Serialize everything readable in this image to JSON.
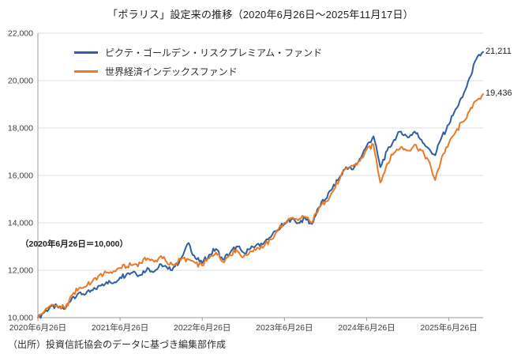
{
  "page": {
    "source_note": "（出所）投資信託協会のデータに基づき編集部作成"
  },
  "chart_data": {
    "type": "line",
    "title": "「ポラリス」設定来の推移（2020年6月26日～2025年11月17日）",
    "annotation": "（2020年6月26日＝10,000）",
    "x_start": "2020年6月26日",
    "x_end": "2025年11月17日",
    "x_unit": "monthly",
    "ylim": [
      10000,
      22000
    ],
    "grid": "horizontal",
    "legend_position": "top-left-inside",
    "y_ticks": [
      {
        "value": 10000,
        "label": "10,000"
      },
      {
        "value": 12000,
        "label": "12,000"
      },
      {
        "value": 14000,
        "label": "14,000"
      },
      {
        "value": 16000,
        "label": "16,000"
      },
      {
        "value": 18000,
        "label": "18,000"
      },
      {
        "value": 20000,
        "label": "20,000"
      },
      {
        "value": 22000,
        "label": "22,000"
      }
    ],
    "x_ticks": [
      {
        "index": 0,
        "label": "2020年6月26日"
      },
      {
        "index": 12,
        "label": "2021年6月26日"
      },
      {
        "index": 24,
        "label": "2022年6月26日"
      },
      {
        "index": 36,
        "label": "2023年6月26日"
      },
      {
        "index": 48,
        "label": "2024年6月26日"
      },
      {
        "index": 60,
        "label": "2025年6月26日"
      }
    ],
    "series": [
      {
        "name": "ピクテ・ゴールデン・リスクプレミアム・ファンド",
        "color": "#2e5fa3",
        "end_label": "21,211",
        "end_value": 21211,
        "values": [
          10000,
          10250,
          10500,
          10420,
          10380,
          10850,
          11050,
          11000,
          11150,
          11350,
          11500,
          11450,
          11700,
          11850,
          11950,
          11800,
          12100,
          11950,
          12250,
          12050,
          12150,
          12550,
          13150,
          12500,
          12300,
          12650,
          12900,
          12450,
          12700,
          13000,
          12750,
          12900,
          13100,
          13150,
          13400,
          13700,
          13950,
          14150,
          14000,
          14200,
          13950,
          14650,
          15000,
          15450,
          15900,
          16350,
          16250,
          16700,
          17250,
          17650,
          16350,
          17050,
          17500,
          17850,
          17600,
          17850,
          17500,
          17150,
          16850,
          17650,
          18150,
          18800,
          19300,
          20100,
          20900,
          21211
        ]
      },
      {
        "name": "世界経済インデックスファンド",
        "color": "#e87a28",
        "end_label": "19,436",
        "end_value": 19436,
        "values": [
          10000,
          10300,
          10550,
          10450,
          10400,
          10950,
          11250,
          11300,
          11550,
          11800,
          11900,
          11950,
          12100,
          12150,
          12250,
          12300,
          12500,
          12350,
          12600,
          12250,
          12250,
          12500,
          12450,
          12300,
          12200,
          12500,
          12750,
          12350,
          12650,
          12850,
          12550,
          12800,
          12950,
          13000,
          13300,
          13650,
          14000,
          14200,
          14100,
          14250,
          14000,
          14600,
          14900,
          15300,
          15800,
          16300,
          16400,
          16600,
          17100,
          17300,
          15700,
          16500,
          16950,
          17200,
          17050,
          17300,
          17050,
          16650,
          15800,
          16800,
          17350,
          17850,
          18250,
          18700,
          19150,
          19436
        ]
      }
    ]
  }
}
